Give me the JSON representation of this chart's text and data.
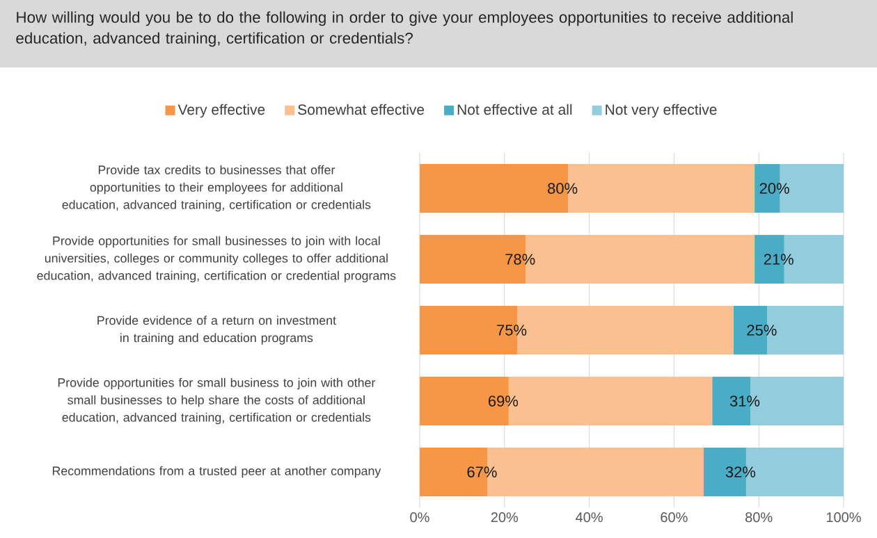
{
  "chart_data": {
    "type": "bar",
    "orientation": "horizontal",
    "stacked": true,
    "title": "How willing would you be to do the following in order to give your employees opportunities to receive additional education, advanced training, certification or credentials?",
    "categories": [
      "Provide tax credits to businesses that offer opportunities to their employees for additional education, advanced training, certification or credentials",
      "Provide opportunities for small businesses to join with local universities, colleges or community colleges to offer additional education, advanced training, certification or credential programs",
      "Provide evidence of a return on investment in training and education programs",
      "Provide opportunities for small business to join with other small businesses to help share the costs of additional education, advanced training, certification or credentials",
      "Recommendations from a trusted peer at another company"
    ],
    "series": [
      {
        "name": "Very effective",
        "color": "#f79646",
        "values": [
          35,
          25,
          23,
          21,
          16
        ]
      },
      {
        "name": "Somewhat effective",
        "color": "#fac090",
        "values": [
          44,
          54,
          51,
          48,
          51
        ]
      },
      {
        "name": "Not effective at all",
        "color": "#4bacc6",
        "values": [
          6,
          7,
          8,
          9,
          10
        ]
      },
      {
        "name": "Not very effective",
        "color": "#93cddd",
        "values": [
          15,
          14,
          18,
          22,
          23
        ]
      }
    ],
    "xlim": [
      0,
      100
    ],
    "xticks": [
      {
        "value": 0,
        "label": "0%"
      },
      {
        "value": 20,
        "label": "20%"
      },
      {
        "value": 40,
        "label": "40%"
      },
      {
        "value": 60,
        "label": "60%"
      },
      {
        "value": 80,
        "label": "80%"
      },
      {
        "value": 100,
        "label": "100%"
      }
    ],
    "grid": "x",
    "legend": "top",
    "annotations": [
      "80%",
      "20%",
      "78%",
      "21%",
      "75%",
      "25%",
      "69%",
      "31%",
      "67%",
      "32%"
    ]
  }
}
